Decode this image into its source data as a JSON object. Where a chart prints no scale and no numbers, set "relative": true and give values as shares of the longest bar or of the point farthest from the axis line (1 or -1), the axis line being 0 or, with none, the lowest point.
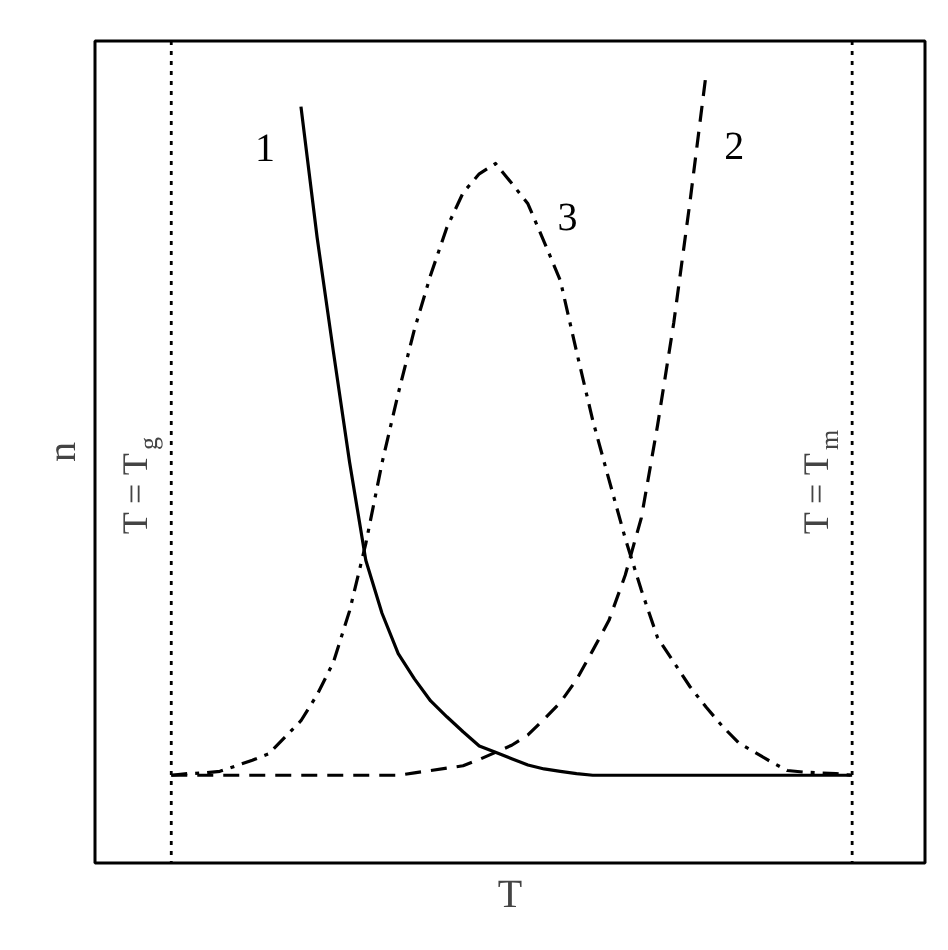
{
  "chart_data": {
    "type": "line",
    "relative": true,
    "xlabel": "T",
    "ylabel": "n",
    "marker": "none",
    "categories": [
      null,
      null,
      null,
      null,
      null,
      null,
      null,
      null,
      null,
      null,
      null,
      null,
      null,
      null,
      null,
      null,
      null,
      null,
      null,
      null,
      null,
      null,
      null,
      null,
      null,
      null,
      null,
      null,
      null,
      null,
      null,
      null,
      null,
      null,
      null,
      null,
      null,
      null,
      null,
      null,
      null,
      null,
      null
    ],
    "series": [
      {
        "name": "1",
        "color": "#000000",
        "line_style": "solid",
        "values": [
          null,
          null,
          null,
          null,
          null,
          null,
          null,
          null,
          0.957,
          0.791,
          0.647,
          0.507,
          0.383,
          0.316,
          0.265,
          0.233,
          0.205,
          0.185,
          0.166,
          0.148,
          0.14,
          0.132,
          0.124,
          0.119,
          0.116,
          0.113,
          0.111,
          0.111,
          0.111,
          0.111,
          0.111,
          0.111,
          0.111,
          0.111,
          0.111,
          0.111,
          0.111,
          0.111,
          0.111,
          0.111,
          0.111,
          0.111,
          0.111
        ]
      },
      {
        "name": "2",
        "color": "#000000",
        "line_style": "dashed",
        "values": [
          0.111,
          0.111,
          0.111,
          0.111,
          0.111,
          0.111,
          0.111,
          0.111,
          0.111,
          0.111,
          0.111,
          0.111,
          0.111,
          0.111,
          0.111,
          0.114,
          0.117,
          0.12,
          0.123,
          0.131,
          0.14,
          0.149,
          0.162,
          0.182,
          0.203,
          0.232,
          0.269,
          0.307,
          0.364,
          0.437,
          0.554,
          0.684,
          0.837,
          1.0,
          null,
          null,
          null,
          null,
          null,
          null,
          null,
          null,
          null
        ]
      },
      {
        "name": "3",
        "color": "#000000",
        "line_style": "dashdot",
        "values": [
          0.111,
          0.113,
          0.114,
          0.116,
          0.123,
          0.13,
          0.138,
          0.159,
          0.18,
          0.213,
          0.254,
          0.319,
          0.404,
          0.506,
          0.594,
          0.675,
          0.744,
          0.804,
          0.848,
          0.872,
          0.885,
          0.86,
          0.834,
          0.786,
          0.737,
          0.647,
          0.56,
          0.485,
          0.411,
          0.345,
          0.285,
          0.254,
          0.223,
          0.197,
          0.173,
          0.152,
          0.14,
          0.128,
          0.117,
          0.115,
          0.114,
          0.113,
          0.111
        ]
      }
    ],
    "ref_lines": [
      {
        "axis": "x",
        "label": "T = T$_{g}$",
        "line_style": "dotted"
      },
      {
        "axis": "x",
        "label": "T = T$_{m}$",
        "line_style": "dotted"
      }
    ]
  }
}
